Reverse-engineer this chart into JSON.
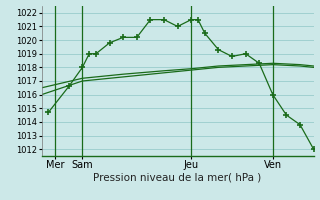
{
  "title": "Pression niveau de la mer( hPa )",
  "bg_color": "#cce8e8",
  "grid_color": "#99cccc",
  "line_color": "#1a6b1a",
  "ylim": [
    1011.5,
    1022.5
  ],
  "xlim": [
    0,
    20
  ],
  "day_positions": [
    1,
    3,
    11,
    17
  ],
  "day_labels": [
    "Mer",
    "Sam",
    "Jeu",
    "Ven"
  ],
  "vline_positions": [
    1,
    3,
    11,
    17
  ],
  "series_band1": {
    "x": [
      0,
      3,
      6,
      9,
      11,
      13,
      15,
      17,
      19,
      20
    ],
    "y": [
      1016.0,
      1017.0,
      1017.3,
      1017.6,
      1017.8,
      1018.0,
      1018.1,
      1018.2,
      1018.1,
      1018.0
    ]
  },
  "series_band2": {
    "x": [
      0,
      3,
      6,
      9,
      11,
      13,
      15,
      17,
      19,
      20
    ],
    "y": [
      1016.5,
      1017.2,
      1017.5,
      1017.75,
      1017.9,
      1018.1,
      1018.2,
      1018.3,
      1018.2,
      1018.1
    ]
  },
  "series_zigzag": {
    "x": [
      0.5,
      2.0,
      3.0,
      3.5,
      4.0,
      5.0,
      6.0,
      7.0,
      8.0,
      9.0,
      10.0,
      11.0,
      11.5,
      12.0,
      13.0,
      14.0,
      15.0,
      16.0,
      17.0,
      18.0,
      19.0,
      20.0
    ],
    "y": [
      1014.7,
      1016.6,
      1018.0,
      1019.0,
      1019.0,
      1019.8,
      1020.2,
      1020.2,
      1021.5,
      1021.5,
      1021.0,
      1021.5,
      1021.5,
      1020.5,
      1019.3,
      1018.8,
      1019.0,
      1018.3,
      1016.0,
      1014.5,
      1013.8,
      1012.0
    ]
  }
}
